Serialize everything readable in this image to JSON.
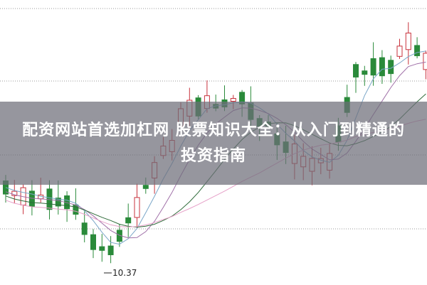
{
  "article": {
    "title": "配资网站首选加杠网 股票知识大全：从入门到精通的投资指南"
  },
  "chart": {
    "low_label": "10.37",
    "colors": {
      "up": "#c8323c",
      "down": "#2a8a3a",
      "grid": "#999999"
    }
  }
}
